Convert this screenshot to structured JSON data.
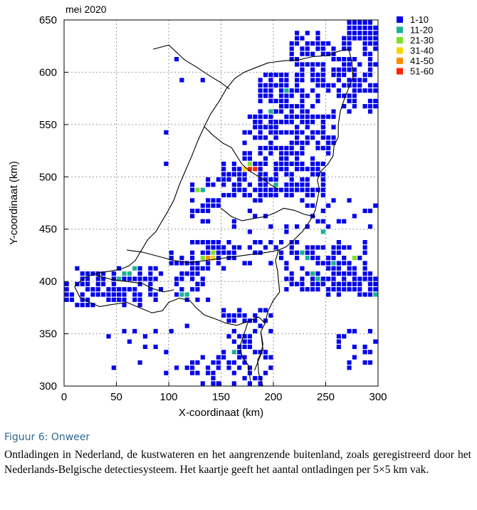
{
  "chart_data": {
    "type": "heatmap",
    "title": "mei 2020",
    "xlabel": "X-coordinaat (km)",
    "ylabel": "Y-coordinaat (km)",
    "xlim": [
      0,
      300
    ],
    "ylim": [
      300,
      650
    ],
    "xticks": [
      "0",
      "50",
      "100",
      "150",
      "200",
      "250",
      "300"
    ],
    "yticks": [
      "300",
      "350",
      "400",
      "450",
      "500",
      "550",
      "600",
      "650"
    ],
    "cell_size_km": 5,
    "legend": [
      {
        "label": "1-10",
        "color": "#0000ee"
      },
      {
        "label": "11-20",
        "color": "#1ab394"
      },
      {
        "label": "21-30",
        "color": "#7fe02a"
      },
      {
        "label": "31-40",
        "color": "#f2d600"
      },
      {
        "label": "41-50",
        "color": "#ff8c00"
      },
      {
        "label": "51-60",
        "color": "#ff2200"
      }
    ],
    "grid": true,
    "legend_position": "right"
  },
  "caption": {
    "title": "Figuur 6: Onweer",
    "text": "Ontladingen in Nederland, de kustwateren en het aangrenzende buitenland, zoals geregistreerd door het Nederlands-Belgische detectiesysteem. Het kaartje geeft het aantal ontladingen per 5×5 km vak."
  }
}
